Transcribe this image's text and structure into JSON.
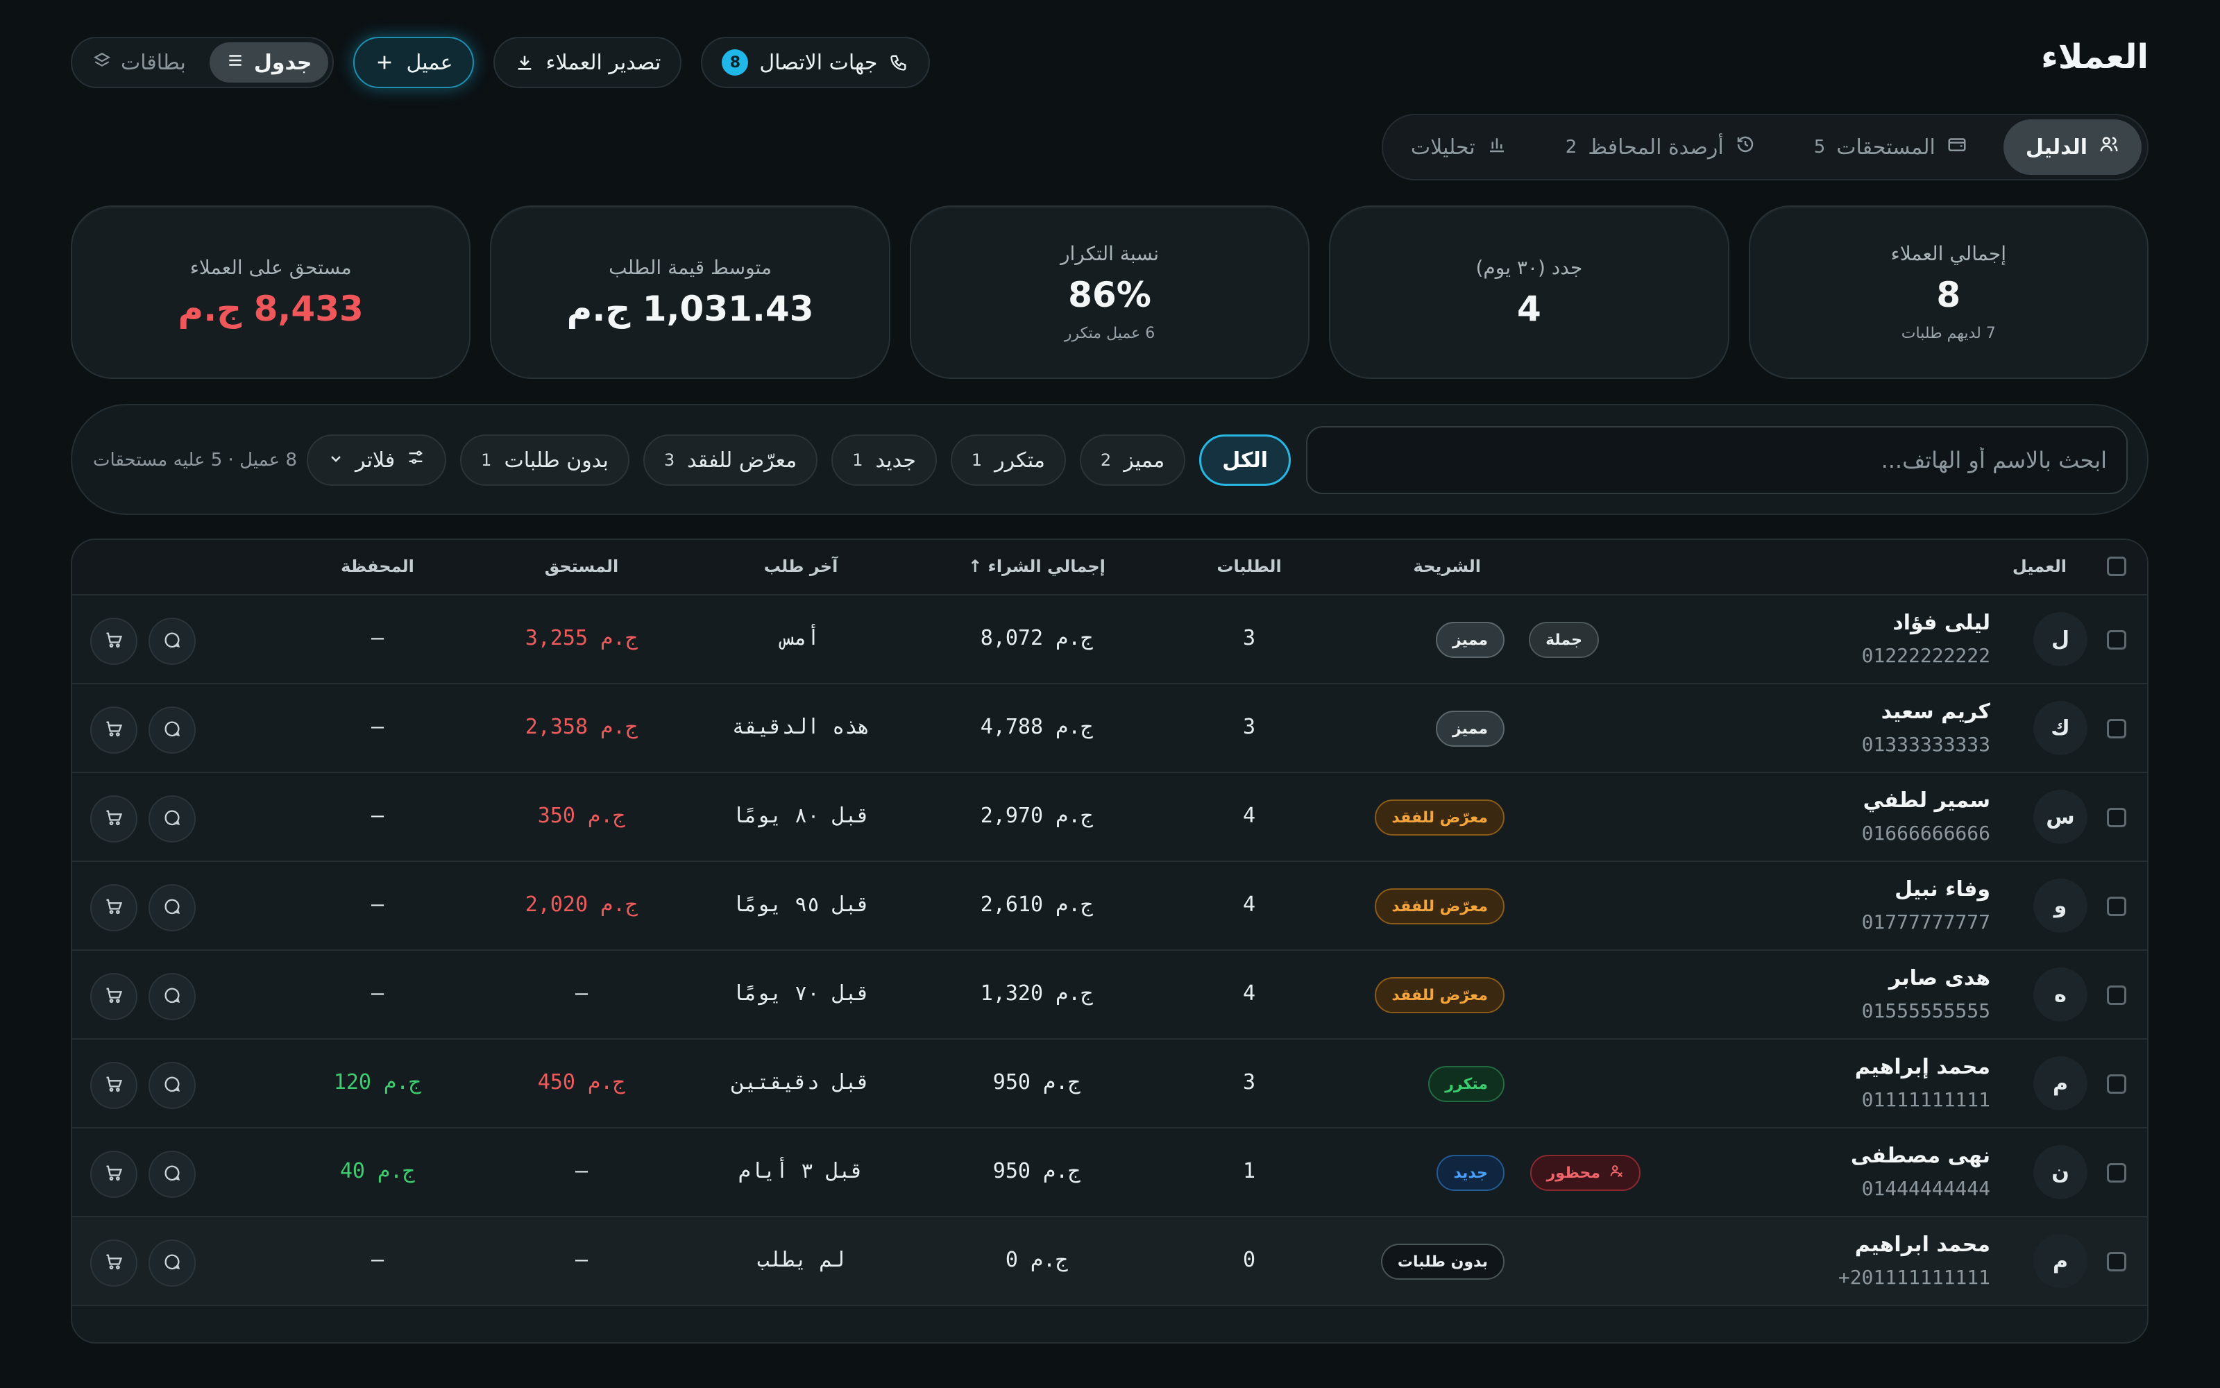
{
  "header": {
    "title": "العملاء",
    "contacts_label": "جهات الاتصال",
    "contacts_count": "8",
    "export_label": "تصدير العملاء",
    "add_label": "عميل",
    "view_table": "جدول",
    "view_cards": "بطاقات"
  },
  "tabs": [
    {
      "label": "الدليل",
      "count": "",
      "icon": "users-icon"
    },
    {
      "label": "المستحقات",
      "count": "5",
      "icon": "wallet-icon"
    },
    {
      "label": "أرصدة المحافظ",
      "count": "2",
      "icon": "history-icon"
    },
    {
      "label": "تحليلات",
      "count": "",
      "icon": "bar-chart-icon"
    }
  ],
  "stats": [
    {
      "label": "إجمالي العملاء",
      "value": "8",
      "sub": "7 لديهم طلبات"
    },
    {
      "label": "جدد (٣٠ يوم)",
      "value": "4",
      "sub": ""
    },
    {
      "label": "نسبة التكرار",
      "value": "86%",
      "sub": "6 عميل متكرر"
    },
    {
      "label": "متوسط قيمة الطلب",
      "value": "1,031.43 ج.م",
      "sub": ""
    },
    {
      "label": "مستحق على العملاء",
      "value": "8,433 ج.م",
      "sub": ""
    }
  ],
  "filters": {
    "search_placeholder": "ابحث بالاسم أو الهاتف...",
    "chips": [
      {
        "label": "الكل",
        "count": ""
      },
      {
        "label": "مميز",
        "count": "2"
      },
      {
        "label": "متكرر",
        "count": "1"
      },
      {
        "label": "جديد",
        "count": "1"
      },
      {
        "label": "معرّض للفقد",
        "count": "3"
      },
      {
        "label": "بدون طلبات",
        "count": "1"
      }
    ],
    "filter_label": "فلاتر",
    "summary": "8 عميل · 5 عليه مستحقات"
  },
  "table": {
    "columns": {
      "customer": "العميل",
      "segment": "الشريحة",
      "orders": "الطلبات",
      "total": "إجمالي الشراء",
      "last_order": "آخر طلب",
      "due": "المستحق",
      "wallet": "المحفظة"
    },
    "rows": [
      {
        "initial": "ل",
        "name": "ليلى فؤاد",
        "phone": "01222222222",
        "segment": "مميز",
        "seg_class": "b-vip",
        "tag": "جملة",
        "tag_class": "b-tag",
        "orders": "3",
        "total": "8,072 ج.م",
        "last": "أمس",
        "due": "3,255 ج.م",
        "due_class": "red",
        "wallet": "—",
        "wallet_class": ""
      },
      {
        "initial": "ك",
        "name": "كريم سعيد",
        "phone": "01333333333",
        "segment": "مميز",
        "seg_class": "b-vip",
        "tag": "",
        "tag_class": "",
        "orders": "3",
        "total": "4,788 ج.م",
        "last": "هذه الدقيقة",
        "due": "2,358 ج.م",
        "due_class": "red",
        "wallet": "—",
        "wallet_class": ""
      },
      {
        "initial": "س",
        "name": "سمير لطفي",
        "phone": "01666666666",
        "segment": "معرّض للفقد",
        "seg_class": "b-risk",
        "tag": "",
        "tag_class": "",
        "orders": "4",
        "total": "2,970 ج.م",
        "last": "قبل ٨٠ يومًا",
        "due": "350 ج.م",
        "due_class": "red",
        "wallet": "—",
        "wallet_class": ""
      },
      {
        "initial": "و",
        "name": "وفاء نبيل",
        "phone": "01777777777",
        "segment": "معرّض للفقد",
        "seg_class": "b-risk",
        "tag": "",
        "tag_class": "",
        "orders": "4",
        "total": "2,610 ج.م",
        "last": "قبل ٩٥ يومًا",
        "due": "2,020 ج.م",
        "due_class": "red",
        "wallet": "—",
        "wallet_class": ""
      },
      {
        "initial": "ه",
        "name": "هدى صابر",
        "phone": "01555555555",
        "segment": "معرّض للفقد",
        "seg_class": "b-risk",
        "tag": "",
        "tag_class": "",
        "orders": "4",
        "total": "1,320 ج.م",
        "last": "قبل ٧٠ يومًا",
        "due": "—",
        "due_class": "",
        "wallet": "—",
        "wallet_class": ""
      },
      {
        "initial": "م",
        "name": "محمد إبراهيم",
        "phone": "01111111111",
        "segment": "متكرر",
        "seg_class": "b-rep",
        "tag": "",
        "tag_class": "",
        "orders": "3",
        "total": "950 ج.م",
        "last": "قبل دقيقتين",
        "due": "450 ج.م",
        "due_class": "red",
        "wallet": "120 ج.م",
        "wallet_class": "green"
      },
      {
        "initial": "ن",
        "name": "نهى مصطفى",
        "phone": "01444444444",
        "segment": "جديد",
        "seg_class": "b-new",
        "tag": "محظور",
        "tag_class": "b-ban",
        "orders": "1",
        "total": "950 ج.م",
        "last": "قبل ٣ أيام",
        "due": "—",
        "due_class": "",
        "wallet": "40 ج.م",
        "wallet_class": "green"
      },
      {
        "initial": "م",
        "name": "محمد ابراهيم",
        "phone": "+201111111111",
        "segment": "بدون طلبات",
        "seg_class": "b-none",
        "tag": "",
        "tag_class": "",
        "orders": "0",
        "total": "0 ج.م",
        "last": "لم يطلب",
        "due": "—",
        "due_class": "",
        "wallet": "—",
        "wallet_class": ""
      }
    ]
  }
}
